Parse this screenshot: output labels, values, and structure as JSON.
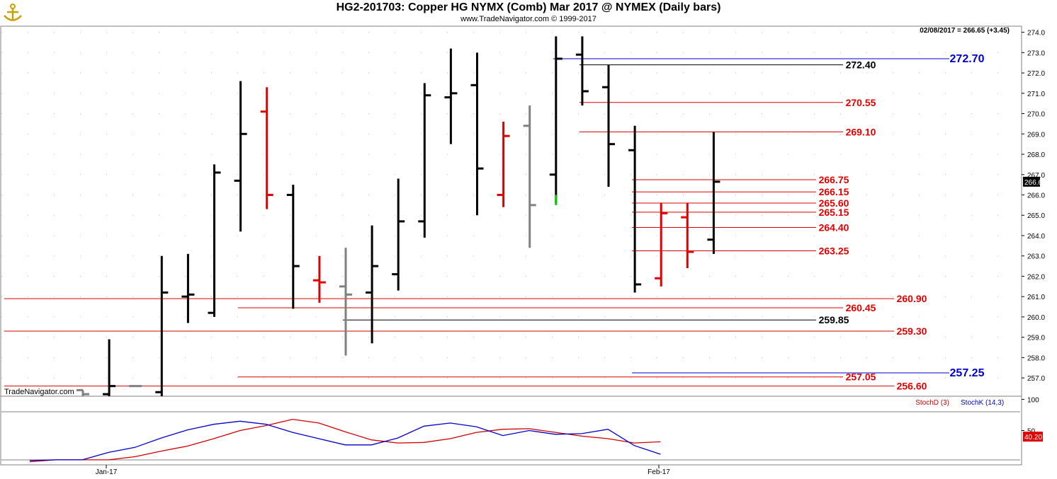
{
  "header": {
    "title": "HG2-201703:  Copper HG NYMX (Comb) Mar 2017 @ NYMEX  (Daily bars)",
    "copyright": "www.TradeNavigator.com © 1999-2017",
    "last_readout": "02/08/2017 = 266.65 (+3.45)",
    "watermark": "TradeNavigator.com"
  },
  "colors": {
    "up": "#000000",
    "down": "#e00000",
    "neutral": "#808080",
    "level_red": "#e00000",
    "level_black": "#000000",
    "level_blue": "#0000cc",
    "stoch_d": "#d00000",
    "stoch_k": "#0000cc",
    "last_marker": "#00cc00"
  },
  "chart_data": [
    {
      "type": "ohlc",
      "ylim": [
        256.1,
        274.3
      ],
      "yticks": [
        "257.0",
        "258.0",
        "259.0",
        "260.0",
        "261.0",
        "262.0",
        "263.0",
        "264.0",
        "265.0",
        "266.0",
        "267.0",
        "268.0",
        "269.0",
        "270.0",
        "271.0",
        "272.0",
        "273.0",
        "274.0"
      ],
      "xticks": [
        {
          "label": "Jan-17",
          "bar": 3
        },
        {
          "label": "Feb-17",
          "bar": 24
        }
      ],
      "last_price_label": "266.65",
      "bars": [
        {
          "o": 256.4,
          "h": 256.4,
          "l": 256.1,
          "c": 256.2,
          "color": "neutral"
        },
        {
          "o": 256.2,
          "h": 258.9,
          "l": 256.1,
          "c": 256.6,
          "color": "up"
        },
        {
          "o": 256.6,
          "h": 256.6,
          "l": 256.6,
          "c": 256.6,
          "color": "neutral"
        },
        {
          "o": 256.3,
          "h": 263.0,
          "l": 256.1,
          "c": 261.2,
          "color": "up"
        },
        {
          "o": 261.0,
          "h": 263.1,
          "l": 259.7,
          "c": 261.1,
          "color": "up"
        },
        {
          "o": 260.2,
          "h": 267.5,
          "l": 260.0,
          "c": 267.1,
          "color": "up"
        },
        {
          "o": 266.7,
          "h": 271.6,
          "l": 264.2,
          "c": 269.0,
          "color": "up"
        },
        {
          "o": 270.1,
          "h": 271.3,
          "l": 265.3,
          "c": 266.0,
          "color": "down"
        },
        {
          "o": 266.0,
          "h": 266.5,
          "l": 260.4,
          "c": 262.5,
          "color": "up"
        },
        {
          "o": 261.8,
          "h": 263.0,
          "l": 260.7,
          "c": 261.7,
          "color": "down"
        },
        {
          "o": 261.5,
          "h": 263.4,
          "l": 258.1,
          "c": 261.1,
          "color": "neutral"
        },
        {
          "o": 261.2,
          "h": 264.5,
          "l": 258.7,
          "c": 262.5,
          "color": "up"
        },
        {
          "o": 262.1,
          "h": 266.8,
          "l": 261.3,
          "c": 264.7,
          "color": "up"
        },
        {
          "o": 264.7,
          "h": 271.5,
          "l": 263.9,
          "c": 270.9,
          "color": "up"
        },
        {
          "o": 270.8,
          "h": 273.2,
          "l": 268.5,
          "c": 271.0,
          "color": "up"
        },
        {
          "o": 271.4,
          "h": 273.0,
          "l": 265.0,
          "c": 267.3,
          "color": "up"
        },
        {
          "o": 266.0,
          "h": 269.6,
          "l": 265.4,
          "c": 268.9,
          "color": "down"
        },
        {
          "o": 269.4,
          "h": 270.4,
          "l": 263.4,
          "c": 265.5,
          "color": "neutral"
        },
        {
          "o": 267.0,
          "h": 273.8,
          "l": 265.6,
          "c": 272.7,
          "color": "up"
        },
        {
          "o": 272.9,
          "h": 273.8,
          "l": 270.4,
          "c": 271.1,
          "color": "up"
        },
        {
          "o": 271.3,
          "h": 272.4,
          "l": 266.4,
          "c": 268.5,
          "color": "up"
        },
        {
          "o": 268.2,
          "h": 269.4,
          "l": 261.2,
          "c": 261.6,
          "color": "up"
        },
        {
          "o": 261.9,
          "h": 265.6,
          "l": 261.5,
          "c": 265.1,
          "color": "down"
        },
        {
          "o": 264.9,
          "h": 265.6,
          "l": 262.4,
          "c": 263.2,
          "color": "down"
        },
        {
          "o": 263.8,
          "h": 269.1,
          "l": 263.1,
          "c": 266.65,
          "color": "up"
        }
      ],
      "levels": [
        {
          "value": 272.7,
          "label": "272.70",
          "color": "level_blue",
          "x_from_bar": 18,
          "label_side": "far"
        },
        {
          "value": 272.4,
          "label": "272.40",
          "color": "level_black",
          "x_from_bar": 19,
          "label_side": "near"
        },
        {
          "value": 270.55,
          "label": "270.55",
          "color": "level_red",
          "x_from_bar": 19,
          "label_side": "near"
        },
        {
          "value": 269.1,
          "label": "269.10",
          "color": "level_red",
          "x_from_bar": 19,
          "label_side": "near"
        },
        {
          "value": 266.75,
          "label": "266.75",
          "color": "level_red",
          "x_from_bar": 21,
          "label_side": "short"
        },
        {
          "value": 266.15,
          "label": "266.15",
          "color": "level_red",
          "x_from_bar": 21,
          "label_side": "short"
        },
        {
          "value": 265.6,
          "label": "265.60",
          "color": "level_red",
          "x_from_bar": 21,
          "label_side": "short"
        },
        {
          "value": 265.15,
          "label": "265.15",
          "color": "level_red",
          "x_from_bar": 21,
          "label_side": "short"
        },
        {
          "value": 264.4,
          "label": "264.40",
          "color": "level_red",
          "x_from_bar": 21,
          "label_side": "short"
        },
        {
          "value": 263.25,
          "label": "263.25",
          "color": "level_red",
          "x_from_bar": 21,
          "label_side": "short"
        },
        {
          "value": 260.9,
          "label": "260.90",
          "color": "level_red",
          "x_from_bar": -1,
          "label_side": "mid"
        },
        {
          "value": 260.45,
          "label": "260.45",
          "color": "level_red",
          "x_from_bar": 6,
          "label_side": "near"
        },
        {
          "value": 259.85,
          "label": "259.85",
          "color": "level_black",
          "x_from_bar": 10,
          "label_side": "left"
        },
        {
          "value": 259.3,
          "label": "259.30",
          "color": "level_red",
          "x_from_bar": -1,
          "label_side": "mid"
        },
        {
          "value": 257.25,
          "label": "257.25",
          "color": "level_blue",
          "x_from_bar": 21,
          "label_side": "far"
        },
        {
          "value": 257.05,
          "label": "257.05",
          "color": "level_red",
          "x_from_bar": 6,
          "label_side": "near"
        },
        {
          "value": 256.6,
          "label": "256.60",
          "color": "level_red",
          "x_from_bar": -1,
          "label_side": "mid"
        }
      ]
    },
    {
      "type": "line",
      "ylim": [
        -5,
        105
      ],
      "yticks": [
        "100",
        "50"
      ],
      "last_value_label": "40.20",
      "series": [
        {
          "name": "StochD (3)",
          "color": "stoch_d",
          "values": [
            0,
            3,
            3,
            3,
            8,
            17,
            25,
            37,
            50,
            58,
            68,
            62,
            48,
            35,
            30,
            31,
            37,
            47,
            52,
            53,
            47,
            41,
            37,
            30,
            32
          ]
        },
        {
          "name": "StochK (14,3)",
          "color": "stoch_k",
          "values": [
            2,
            3,
            3,
            15,
            23,
            38,
            51,
            60,
            65,
            60,
            47,
            37,
            27,
            27,
            38,
            57,
            62,
            56,
            42,
            50,
            44,
            45,
            52,
            26,
            12
          ]
        }
      ]
    }
  ]
}
